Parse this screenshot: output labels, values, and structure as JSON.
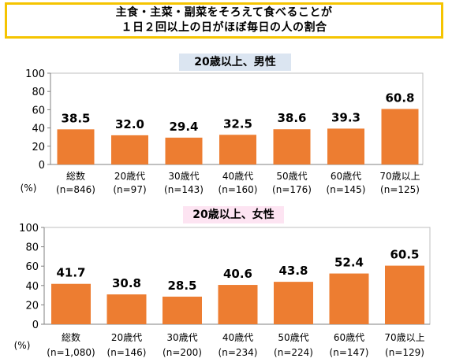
{
  "title": {
    "line1": "主食・主菜・副菜をそろえて食べることが",
    "line2": "１日２回以上の日がほぼ毎日の人の割合"
  },
  "chart_data": [
    {
      "type": "bar",
      "subtitle": "20歳以上、男性",
      "unit": "(%)",
      "categories": [
        "総数",
        "20歳代",
        "30歳代",
        "40歳代",
        "50歳代",
        "60歳代",
        "70歳以上"
      ],
      "n_labels": [
        "(n=846)",
        "(n=97)",
        "(n=143)",
        "(n=160)",
        "(n=176)",
        "(n=145)",
        "(n=125)"
      ],
      "values": [
        38.5,
        32.0,
        29.4,
        32.5,
        38.6,
        39.3,
        60.8
      ],
      "value_labels": [
        "38.5",
        "32.0",
        "29.4",
        "32.5",
        "38.6",
        "39.3",
        "60.8"
      ],
      "yticks": [
        "0",
        "20",
        "40",
        "60",
        "80",
        "100"
      ],
      "ylim": [
        0,
        100
      ],
      "bar_color": "#ed7d31",
      "grid": false
    },
    {
      "type": "bar",
      "subtitle": "20歳以上、女性",
      "unit": "(%)",
      "categories": [
        "総数",
        "20歳代",
        "30歳代",
        "40歳代",
        "50歳代",
        "60歳代",
        "70歳以上"
      ],
      "n_labels": [
        "(n=1,080)",
        "(n=146)",
        "(n=200)",
        "(n=234)",
        "(n=224)",
        "(n=147)",
        "(n=129)"
      ],
      "values": [
        41.7,
        30.8,
        28.5,
        40.6,
        43.8,
        52.4,
        60.5
      ],
      "value_labels": [
        "41.7",
        "30.8",
        "28.5",
        "40.6",
        "43.8",
        "52.4",
        "60.5"
      ],
      "yticks": [
        "0",
        "20",
        "40",
        "60",
        "80",
        "100"
      ],
      "ylim": [
        0,
        100
      ],
      "bar_color": "#ed7d31",
      "grid": false
    }
  ]
}
